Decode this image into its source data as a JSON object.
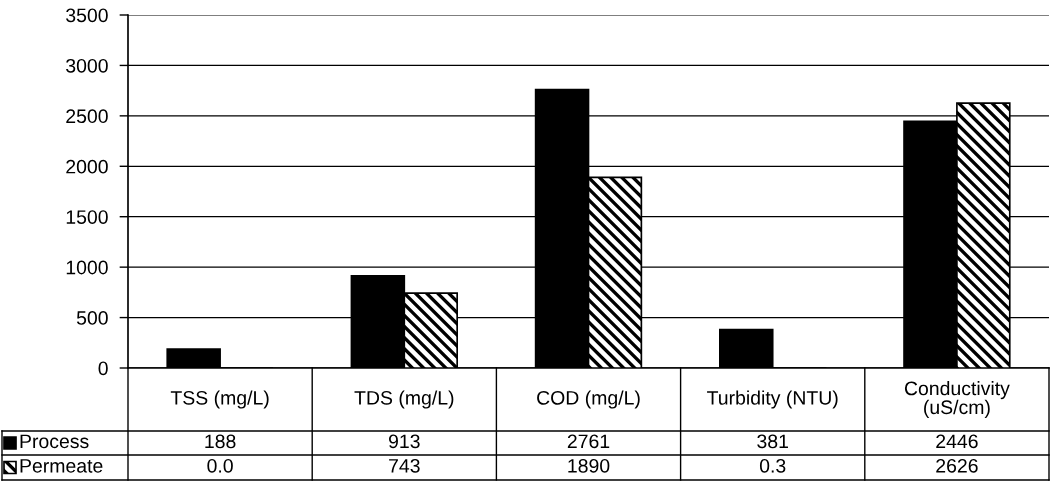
{
  "chart_data": {
    "type": "bar",
    "categories": [
      "TSS (mg/L)",
      "TDS (mg/L)",
      "COD (mg/L)",
      "Turbidity (NTU)",
      "Conductivity\n(uS/cm)"
    ],
    "series": [
      {
        "name": "Process",
        "color": "#000000",
        "values": [
          188,
          913,
          2761,
          381,
          2446
        ],
        "value_labels": [
          "188",
          "913",
          "2761",
          "381",
          "2446"
        ]
      },
      {
        "name": "Permeate",
        "color": "#000000",
        "values": [
          0.0,
          743,
          1890,
          0.3,
          2626
        ],
        "value_labels": [
          "0.0",
          "743",
          "1890",
          "0.3",
          "2626"
        ]
      }
    ],
    "ylim": [
      0,
      3500
    ],
    "yticks": [
      0,
      500,
      1000,
      1500,
      2000,
      2500,
      3000,
      3500
    ],
    "grid": "y",
    "legend": "bottom left"
  }
}
